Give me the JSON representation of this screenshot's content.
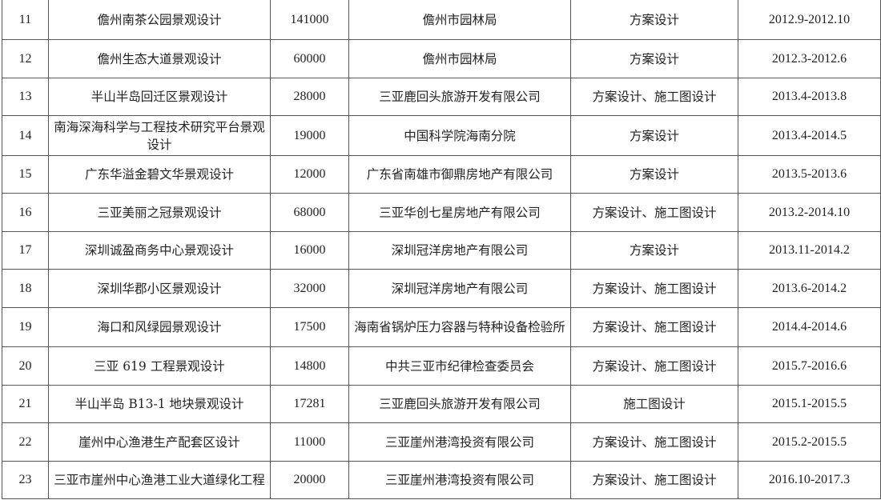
{
  "rows": [
    {
      "no": "11",
      "name": "儋州南茶公园景观设计",
      "area": "141000",
      "client": "儋州市园林局",
      "scope": "方案设计",
      "period": "2012.9-2012.10"
    },
    {
      "no": "12",
      "name": "儋州生态大道景观设计",
      "area": "60000",
      "client": "儋州市园林局",
      "scope": "方案设计",
      "period": "2012.3-2012.6"
    },
    {
      "no": "13",
      "name": "半山半岛回迁区景观设计",
      "area": "28000",
      "client": "三亚鹿回头旅游开发有限公司",
      "scope": "方案设计、施工图设计",
      "period": "2013.4-2013.8"
    },
    {
      "no": "14",
      "name": "南海深海科学与工程技术研究平台景观设计",
      "area": "19000",
      "client": "中国科学院海南分院",
      "scope": "方案设计",
      "period": "2013.4-2014.5"
    },
    {
      "no": "15",
      "name": "广东华溢金碧文华景观设计",
      "area": "12000",
      "client": "广东省南雄市御鼎房地产有限公司",
      "scope": "方案设计",
      "period": "2013.5-2013.6"
    },
    {
      "no": "16",
      "name": "三亚美丽之冠景观设计",
      "area": "68000",
      "client": "三亚华创七星房地产有限公司",
      "scope": "方案设计、施工图设计",
      "period": "2013.2-2014.10"
    },
    {
      "no": "17",
      "name": "深圳诚盈商务中心景观设计",
      "area": "16000",
      "client": "深圳冠洋房地产有限公司",
      "scope": "方案设计",
      "period": "2013.11-2014.2"
    },
    {
      "no": "18",
      "name": "深圳华郡小区景观设计",
      "area": "32000",
      "client": "深圳冠洋房地产有限公司",
      "scope": "方案设计、施工图设计",
      "period": "2013.6-2014.2"
    },
    {
      "no": "19",
      "name": "海口和风绿园景观设计",
      "area": "17500",
      "client": "海南省锅炉压力容器与特种设备检验所",
      "scope": "方案设计、施工图设计",
      "period": "2014.4-2014.6"
    },
    {
      "no": "20",
      "name": "三亚 619 工程景观设计",
      "area": "14800",
      "client": "中共三亚市纪律检查委员会",
      "scope": "方案设计、施工图设计",
      "period": "2015.7-2016.6"
    },
    {
      "no": "21",
      "name": "半山半岛 B13-1 地块景观设计",
      "area": "17281",
      "client": "三亚鹿回头旅游开发有限公司",
      "scope": "施工图设计",
      "period": "2015.1-2015.5"
    },
    {
      "no": "22",
      "name": "崖州中心渔港生产配套区设计",
      "area": "11000",
      "client": "三亚崖州港湾投资有限公司",
      "scope": "方案设计、施工图设计",
      "period": "2015.2-2015.5"
    },
    {
      "no": "23",
      "name": "三亚市崖州中心渔港工业大道绿化工程",
      "area": "20000",
      "client": "三亚崖州港湾投资有限公司",
      "scope": "方案设计、施工图设计",
      "period": "2016.10-2017.3"
    }
  ]
}
